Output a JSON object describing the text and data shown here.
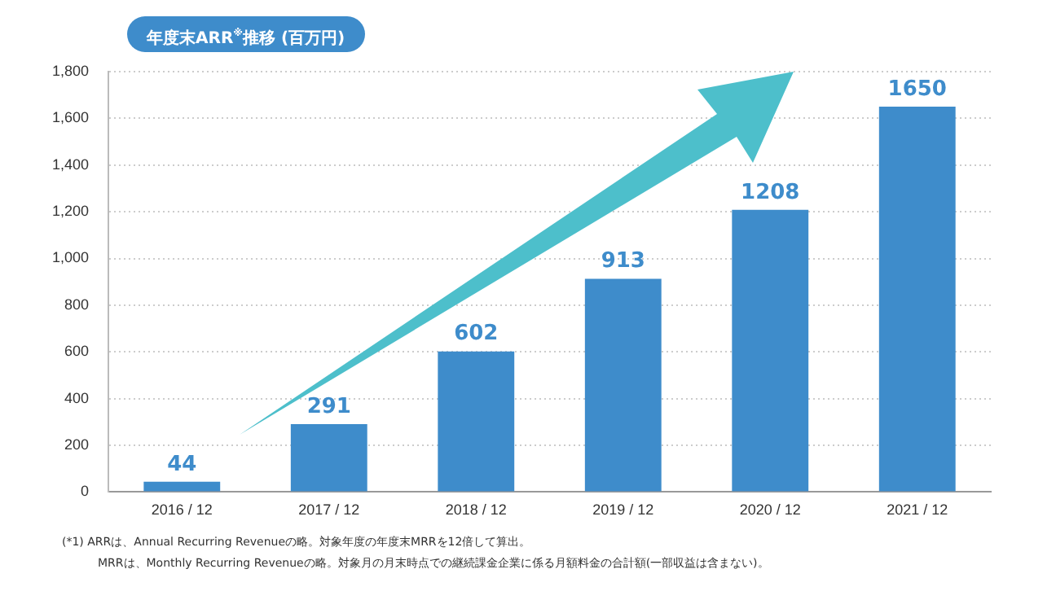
{
  "chart_data": {
    "type": "bar",
    "title": "年度末ARR$^{※}$推移 (百万円)",
    "categories": [
      "2016 / 12",
      "2017 / 12",
      "2018 / 12",
      "2019 / 12",
      "2020 / 12",
      "2021 / 12"
    ],
    "values": [
      44,
      291,
      602,
      913,
      1208,
      1650
    ],
    "color": "#3e8ccb",
    "ylim": [
      0,
      1800
    ],
    "yticks": [
      0,
      {
        "value": 200,
        "label": "200"
      },
      {
        "value": 400,
        "label": "400"
      },
      {
        "value": 600,
        "label": "600"
      },
      {
        "value": 800,
        "label": "800"
      },
      {
        "value": 1000,
        "label": "1,000"
      },
      {
        "value": 1200,
        "label": "1,200"
      },
      {
        "value": 1400,
        "label": "1,400"
      },
      {
        "value": 1600,
        "label": "1,600"
      },
      {
        "value": 1800,
        "label": "1,800"
      }
    ],
    "grid": "y",
    "data_labels": true,
    "annotations": [
      "(*1) ARRは、Annual Recurring Revenueの略。対象年度の年度末MRRを12倍して算出。",
      "MRRは、Monthly Recurring Revenueの略。対象月の月末時点での継続課金企業に係る月額料金の合計額(一部収益は含まない)。"
    ]
  }
}
